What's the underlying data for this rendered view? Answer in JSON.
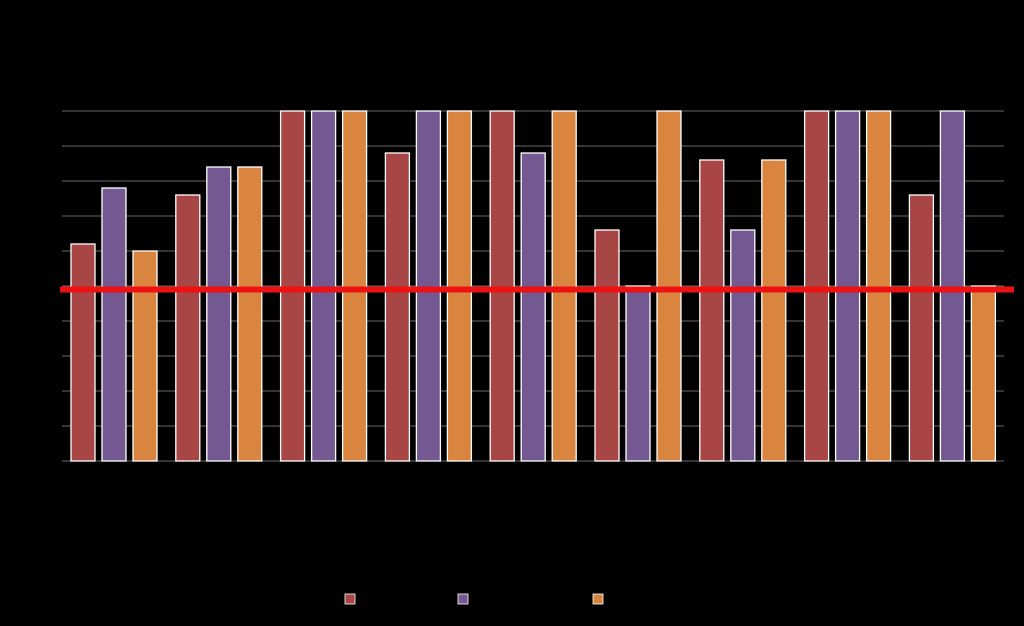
{
  "chart_data": {
    "type": "bar",
    "categories": [
      "",
      "",
      "",
      "",
      "",
      "",
      "",
      "",
      ""
    ],
    "series": [
      {
        "name": "",
        "color": "#a84646",
        "values": [
          6.2,
          7.6,
          10,
          8.8,
          10,
          6.6,
          8.6,
          10,
          7.6
        ]
      },
      {
        "name": "",
        "color": "#735891",
        "values": [
          7.8,
          8.4,
          10,
          10,
          8.8,
          5,
          6.6,
          10,
          10
        ]
      },
      {
        "name": "",
        "color": "#d9843f",
        "values": [
          6.0,
          8.4,
          10,
          10,
          10,
          10,
          8.6,
          10,
          5
        ]
      }
    ],
    "reference_line": {
      "value": 4.9,
      "color": "#ee1111"
    },
    "ylim": [
      0,
      10
    ],
    "grid": true,
    "legend": "bottom-center",
    "title": "",
    "xlabel": "",
    "ylabel": ""
  }
}
